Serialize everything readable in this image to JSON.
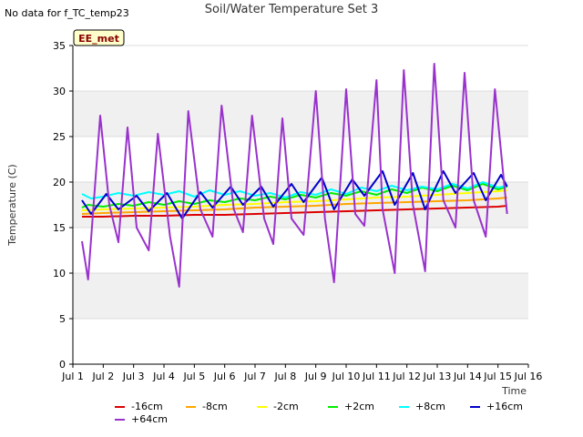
{
  "header": {
    "no_data_note": "No data for f_TC_temp23",
    "title": "Soil/Water Temperature Set 3"
  },
  "chart_data": {
    "type": "line",
    "title": "Soil/Water Temperature Set 3",
    "xlabel": "Time",
    "ylabel": "Temperature (C)",
    "xlim": [
      1,
      16
    ],
    "ylim": [
      0,
      35
    ],
    "x_ticks": [
      "Jul 1",
      "Jul 2",
      "Jul 3",
      "Jul 4",
      "Jul 5",
      "Jul 6",
      "Jul 7",
      "Jul 8",
      "Jul 9",
      "Jul 10",
      "Jul 11",
      "Jul 12",
      "Jul 13",
      "Jul 14",
      "Jul 15",
      "Jul 16"
    ],
    "y_ticks": [
      0,
      5,
      10,
      15,
      20,
      25,
      30,
      35
    ],
    "grid": "banded",
    "station_label": "EE_met",
    "legend_position": "bottom",
    "series": [
      {
        "name": "-16cm",
        "color": "#dd0000",
        "x": [
          1.3,
          2,
          3,
          4,
          5,
          6,
          7,
          8,
          9,
          10,
          11,
          12,
          13,
          14,
          15,
          15.3
        ],
        "y": [
          16.2,
          16.2,
          16.3,
          16.3,
          16.4,
          16.4,
          16.5,
          16.6,
          16.7,
          16.8,
          16.9,
          17.0,
          17.1,
          17.2,
          17.3,
          17.4
        ]
      },
      {
        "name": "-8cm",
        "color": "#ffa500",
        "x": [
          1.3,
          2,
          3,
          4,
          5,
          6,
          7,
          8,
          9,
          10,
          11,
          12,
          13,
          14,
          15,
          15.3
        ],
        "y": [
          16.5,
          16.6,
          16.7,
          16.8,
          16.9,
          17.0,
          17.2,
          17.3,
          17.4,
          17.6,
          17.7,
          17.8,
          17.9,
          18.0,
          18.2,
          18.3
        ]
      },
      {
        "name": "-2cm",
        "color": "#ffff00",
        "x": [
          1.3,
          2,
          3,
          4,
          5,
          6,
          7,
          8,
          9,
          10,
          11,
          12,
          13,
          14,
          15,
          15.3
        ],
        "y": [
          16.9,
          17.0,
          17.1,
          17.2,
          17.3,
          17.5,
          17.6,
          17.8,
          17.9,
          18.1,
          18.3,
          18.4,
          18.6,
          18.8,
          19.0,
          19.1
        ]
      },
      {
        "name": "+2cm",
        "color": "#00ee00",
        "x": [
          1.3,
          1.5,
          2,
          2.5,
          3,
          3.5,
          4,
          4.5,
          5,
          5.5,
          6,
          6.5,
          7,
          7.5,
          8,
          8.5,
          9,
          9.5,
          10,
          10.5,
          11,
          11.5,
          12,
          12.5,
          13,
          13.5,
          14,
          14.5,
          15,
          15.3
        ],
        "y": [
          17.2,
          17.5,
          17.3,
          17.6,
          17.4,
          17.8,
          17.5,
          17.9,
          17.6,
          18.0,
          17.8,
          18.2,
          18.0,
          18.4,
          18.1,
          18.6,
          18.3,
          18.8,
          18.5,
          19.0,
          18.6,
          19.2,
          18.8,
          19.4,
          19.0,
          19.6,
          19.1,
          19.8,
          19.2,
          19.5
        ]
      },
      {
        "name": "+8cm",
        "color": "#00ffff",
        "x": [
          1.3,
          1.6,
          2,
          2.5,
          3,
          3.5,
          4,
          4.5,
          5,
          5.5,
          6,
          6.5,
          7,
          7.5,
          8,
          8.5,
          9,
          9.5,
          10,
          10.5,
          11,
          11.5,
          12,
          12.5,
          13,
          13.5,
          14,
          14.5,
          15,
          15.3
        ],
        "y": [
          18.7,
          18.2,
          18.4,
          18.8,
          18.5,
          18.9,
          18.6,
          19.0,
          18.4,
          19.1,
          18.6,
          19.0,
          18.5,
          18.8,
          18.3,
          18.9,
          18.6,
          19.2,
          18.7,
          19.4,
          19.0,
          19.6,
          19.1,
          19.5,
          19.2,
          19.8,
          19.3,
          20.0,
          19.4,
          19.6
        ]
      },
      {
        "name": "+16cm",
        "color": "#0000cc",
        "x": [
          1.3,
          1.6,
          2.1,
          2.5,
          3.1,
          3.5,
          4.1,
          4.6,
          5.2,
          5.6,
          6.2,
          6.6,
          7.2,
          7.6,
          8.2,
          8.6,
          9.2,
          9.6,
          10.2,
          10.6,
          11.2,
          11.6,
          12.2,
          12.6,
          13.2,
          13.6,
          14.2,
          14.6,
          15.1,
          15.3
        ],
        "y": [
          18.0,
          16.5,
          18.7,
          17.0,
          18.5,
          16.8,
          18.8,
          16.0,
          18.9,
          17.2,
          19.5,
          17.5,
          19.5,
          17.3,
          19.8,
          17.8,
          20.5,
          17.0,
          20.3,
          18.5,
          21.2,
          17.5,
          21.0,
          17.0,
          21.2,
          18.8,
          21.0,
          18.0,
          20.8,
          19.5
        ]
      },
      {
        "name": "+64cm",
        "color": "#9932cc",
        "x": [
          1.3,
          1.5,
          1.9,
          2.2,
          2.5,
          2.8,
          3.1,
          3.5,
          3.8,
          4.2,
          4.5,
          4.8,
          5.2,
          5.6,
          5.9,
          6.3,
          6.6,
          6.9,
          7.3,
          7.6,
          7.9,
          8.2,
          8.6,
          9.0,
          9.3,
          9.6,
          10.0,
          10.3,
          10.6,
          11.0,
          11.2,
          11.6,
          11.9,
          12.2,
          12.6,
          12.9,
          13.2,
          13.6,
          13.9,
          14.2,
          14.6,
          14.9,
          15.3
        ],
        "y": [
          13.5,
          9.3,
          27.3,
          17.5,
          13.4,
          26.0,
          15.0,
          12.5,
          25.3,
          14.0,
          8.5,
          27.8,
          17.0,
          14.0,
          28.4,
          17.0,
          14.5,
          27.3,
          16.0,
          13.2,
          27.0,
          16.0,
          14.2,
          30.0,
          16.0,
          9.0,
          30.2,
          16.5,
          15.2,
          31.2,
          17.0,
          10.0,
          32.3,
          17.5,
          10.2,
          33.0,
          18.0,
          15.0,
          32.0,
          18.0,
          14.0,
          30.2,
          16.5
        ]
      }
    ]
  }
}
